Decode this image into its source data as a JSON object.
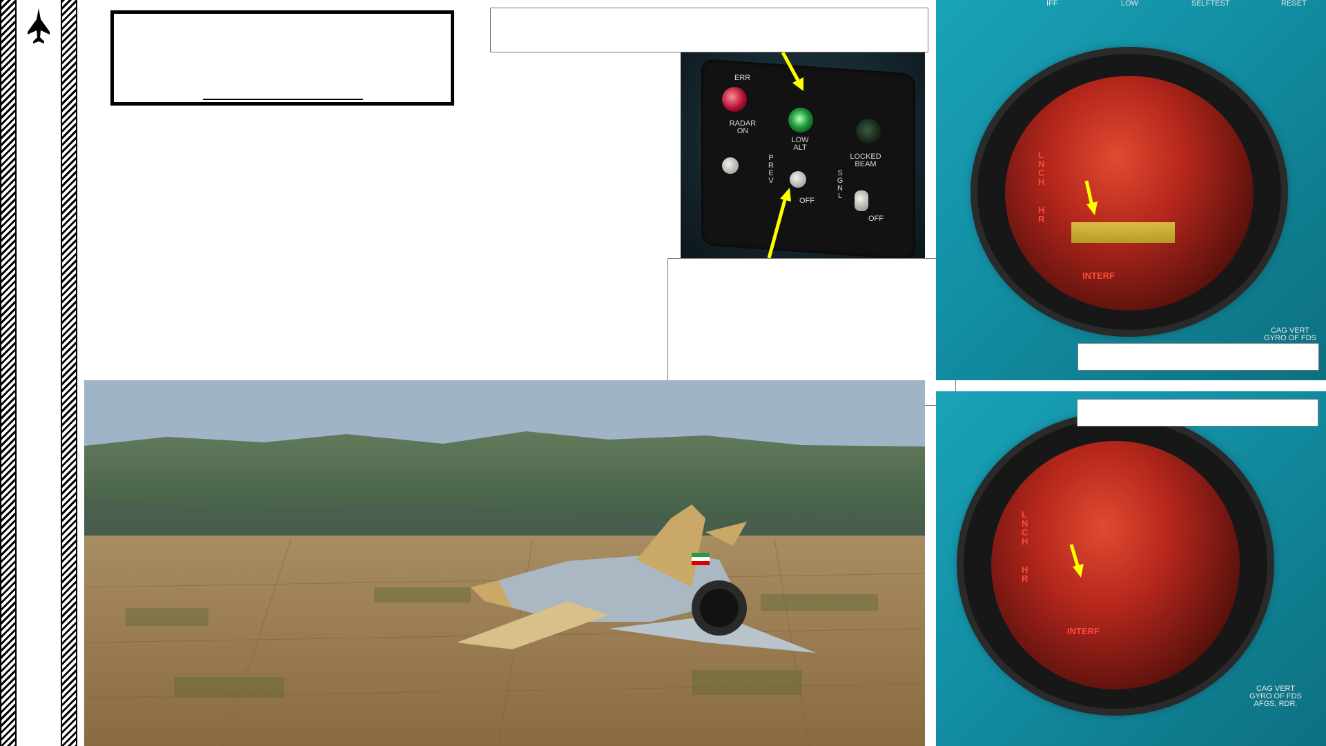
{
  "panel_labels": {
    "err": "ERR",
    "radar_on": "RADAR ON",
    "low_alt": "LOW ALT",
    "locked_beam": "LOCKED BEAM",
    "prev": "PREV",
    "sgnl": "SGNL",
    "off": "OFF",
    "off2": "OFF"
  },
  "scope_top": {
    "header": [
      "IFF",
      "LOW",
      "SELFTEST",
      "RESET"
    ],
    "lnch": "LNCH",
    "hr": "HR",
    "interf": "INTERF",
    "bezel": "CAG VERT GYRO OF FDS"
  },
  "scope_bottom": {
    "lnch": "LNCH",
    "hr": "HR",
    "interf": "INTERF",
    "bezel": "CAG VERT GYRO OF FDS AFGS, RDR."
  },
  "colors": {
    "arrow": "#ffff00",
    "scope_teal": "#1aa3b8",
    "radar_red": "#c4301f"
  }
}
